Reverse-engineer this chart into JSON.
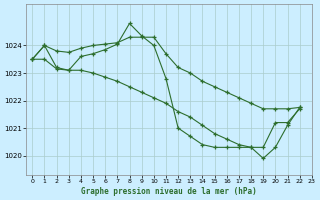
{
  "title": "Graphe pression niveau de la mer (hPa)",
  "background_color": "#cceeff",
  "grid_color": "#aacccc",
  "line_color": "#2d6e2d",
  "xlim": [
    -0.5,
    23
  ],
  "ylim": [
    1019.3,
    1025.5
  ],
  "yticks": [
    1020,
    1021,
    1022,
    1023,
    1024
  ],
  "xticks": [
    0,
    1,
    2,
    3,
    4,
    5,
    6,
    7,
    8,
    9,
    10,
    11,
    12,
    13,
    14,
    15,
    16,
    17,
    18,
    19,
    20,
    21,
    22,
    23
  ],
  "series": [
    {
      "x": [
        0,
        1,
        2,
        3,
        4,
        5,
        6,
        7,
        8,
        9,
        10,
        11,
        12,
        13,
        14,
        15,
        16,
        17,
        18,
        19,
        20,
        21,
        22
      ],
      "y": [
        1023.5,
        1024.0,
        1023.2,
        1023.1,
        1023.6,
        1023.7,
        1023.85,
        1024.05,
        1024.8,
        1024.35,
        1024.0,
        1022.8,
        1021.0,
        1020.7,
        1020.4,
        1020.3,
        1020.3,
        1020.3,
        1020.3,
        1020.3,
        1021.2,
        1021.2,
        1021.7
      ]
    },
    {
      "x": [
        0,
        1,
        2,
        3,
        4,
        5,
        6,
        7,
        8,
        9,
        10,
        11,
        12,
        13,
        14,
        15,
        16,
        17,
        18,
        19,
        20,
        21,
        22
      ],
      "y": [
        1023.5,
        1024.0,
        1023.8,
        1023.75,
        1023.9,
        1024.0,
        1024.05,
        1024.1,
        1024.3,
        1024.3,
        1024.3,
        1023.7,
        1023.2,
        1023.0,
        1022.7,
        1022.5,
        1022.3,
        1022.1,
        1021.9,
        1021.7,
        1021.7,
        1021.7,
        1021.75
      ]
    },
    {
      "x": [
        0,
        1,
        2,
        3,
        4,
        5,
        6,
        7,
        8,
        9,
        10,
        11,
        12,
        13,
        14,
        15,
        16,
        17,
        18,
        19,
        20,
        21,
        22
      ],
      "y": [
        1023.5,
        1023.5,
        1023.15,
        1023.1,
        1023.1,
        1023.0,
        1022.85,
        1022.7,
        1022.5,
        1022.3,
        1022.1,
        1021.9,
        1021.6,
        1021.4,
        1021.1,
        1020.8,
        1020.6,
        1020.4,
        1020.3,
        1019.9,
        1020.3,
        1021.1,
        1021.75
      ]
    }
  ]
}
